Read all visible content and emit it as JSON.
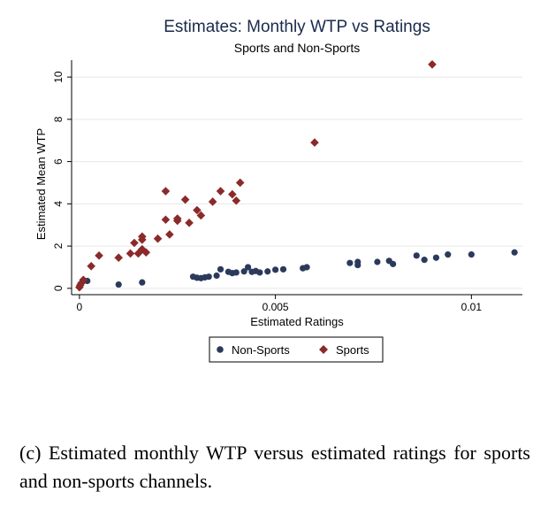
{
  "caption": "(c) Estimated monthly WTP versus estimated ratings for sports and non-sports channels.",
  "colors": {
    "non_sports": "#2b3a5c",
    "sports": "#8b2a2a",
    "title": "#1a2b4c",
    "grid": "#e8e8e8"
  },
  "chart_data": {
    "type": "scatter",
    "title": "Estimates: Monthly WTP vs Ratings",
    "subtitle": "Sports and Non-Sports",
    "xlabel": "Estimated Ratings",
    "ylabel": "Estimated Mean WTP",
    "xlim": [
      -0.0002,
      0.0113
    ],
    "ylim": [
      -0.3,
      10.8
    ],
    "xticks": [
      0,
      0.005,
      0.01
    ],
    "xtick_labels": [
      "0",
      "0.005",
      "0.01"
    ],
    "yticks": [
      0,
      2,
      4,
      6,
      8,
      10
    ],
    "ytick_labels": [
      "0",
      "2",
      "4",
      "6",
      "8",
      "10"
    ],
    "grid": true,
    "legend_position": "bottom",
    "series": [
      {
        "name": "Non-Sports",
        "marker": "circle",
        "points": [
          [
            0.0002,
            0.35
          ],
          [
            0.001,
            0.18
          ],
          [
            0.0016,
            0.28
          ],
          [
            0.0029,
            0.55
          ],
          [
            0.003,
            0.5
          ],
          [
            0.0031,
            0.48
          ],
          [
            0.0032,
            0.52
          ],
          [
            0.0033,
            0.55
          ],
          [
            0.0035,
            0.6
          ],
          [
            0.0036,
            0.9
          ],
          [
            0.0038,
            0.78
          ],
          [
            0.0039,
            0.72
          ],
          [
            0.004,
            0.75
          ],
          [
            0.0042,
            0.8
          ],
          [
            0.0043,
            1.0
          ],
          [
            0.0044,
            0.78
          ],
          [
            0.0045,
            0.82
          ],
          [
            0.0046,
            0.75
          ],
          [
            0.0048,
            0.8
          ],
          [
            0.005,
            0.88
          ],
          [
            0.0052,
            0.9
          ],
          [
            0.0057,
            0.95
          ],
          [
            0.0058,
            1.0
          ],
          [
            0.0069,
            1.2
          ],
          [
            0.0071,
            1.25
          ],
          [
            0.0071,
            1.1
          ],
          [
            0.0076,
            1.25
          ],
          [
            0.0079,
            1.3
          ],
          [
            0.008,
            1.15
          ],
          [
            0.0086,
            1.55
          ],
          [
            0.0088,
            1.35
          ],
          [
            0.0091,
            1.45
          ],
          [
            0.0094,
            1.6
          ],
          [
            0.01,
            1.6
          ],
          [
            0.0111,
            1.7
          ]
        ]
      },
      {
        "name": "Sports",
        "marker": "diamond",
        "points": [
          [
            0.0,
            0.05
          ],
          [
            2e-05,
            0.15
          ],
          [
            5e-05,
            0.25
          ],
          [
            0.0001,
            0.4
          ],
          [
            0.0003,
            1.05
          ],
          [
            0.0005,
            1.55
          ],
          [
            0.001,
            1.45
          ],
          [
            0.0013,
            1.65
          ],
          [
            0.0014,
            2.15
          ],
          [
            0.0015,
            1.65
          ],
          [
            0.0016,
            1.85
          ],
          [
            0.0016,
            2.3
          ],
          [
            0.0016,
            2.45
          ],
          [
            0.0017,
            1.7
          ],
          [
            0.002,
            2.35
          ],
          [
            0.0022,
            3.25
          ],
          [
            0.0022,
            4.6
          ],
          [
            0.0023,
            2.55
          ],
          [
            0.0025,
            3.2
          ],
          [
            0.0025,
            3.3
          ],
          [
            0.0027,
            4.2
          ],
          [
            0.0028,
            3.1
          ],
          [
            0.003,
            3.7
          ],
          [
            0.0031,
            3.45
          ],
          [
            0.0034,
            4.1
          ],
          [
            0.0036,
            4.6
          ],
          [
            0.0039,
            4.45
          ],
          [
            0.004,
            4.15
          ],
          [
            0.0041,
            5.0
          ],
          [
            0.006,
            6.9
          ],
          [
            0.009,
            10.6
          ]
        ]
      }
    ]
  }
}
